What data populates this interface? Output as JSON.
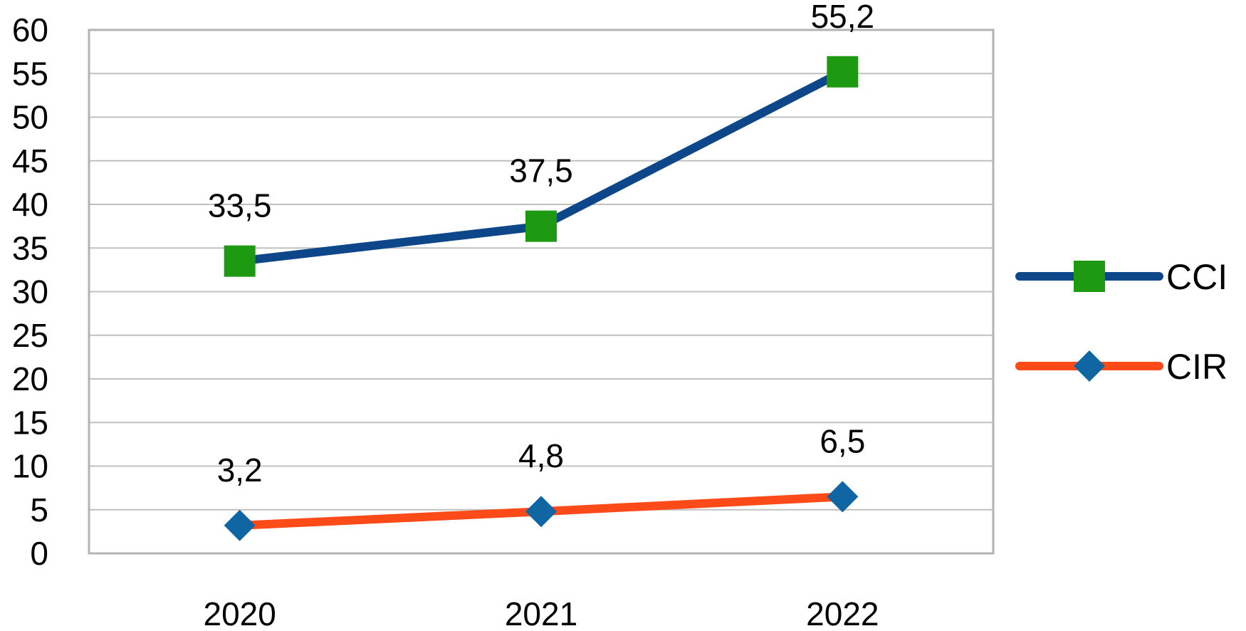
{
  "chart_data": {
    "type": "line",
    "categories": [
      "2020",
      "2021",
      "2022"
    ],
    "series": [
      {
        "name": "CCI",
        "values": [
          33.5,
          37.5,
          55.2
        ],
        "labels": [
          "33,5",
          "37,5",
          "55,2"
        ],
        "line_color": "#0d4689",
        "marker": "square",
        "marker_color": "#1e9a12"
      },
      {
        "name": "CIR",
        "values": [
          3.2,
          4.8,
          6.5
        ],
        "labels": [
          "3,2",
          "4,8",
          "6,5"
        ],
        "line_color": "#fc4b19",
        "marker": "diamond",
        "marker_color": "#0f66a3"
      }
    ],
    "y_ticks": [
      "0",
      "5",
      "10",
      "15",
      "20",
      "25",
      "30",
      "35",
      "40",
      "45",
      "50",
      "55",
      "60"
    ],
    "ylim": [
      0,
      60
    ],
    "grid": true,
    "grid_color": "#c0c0c0",
    "legend_position": "right"
  }
}
